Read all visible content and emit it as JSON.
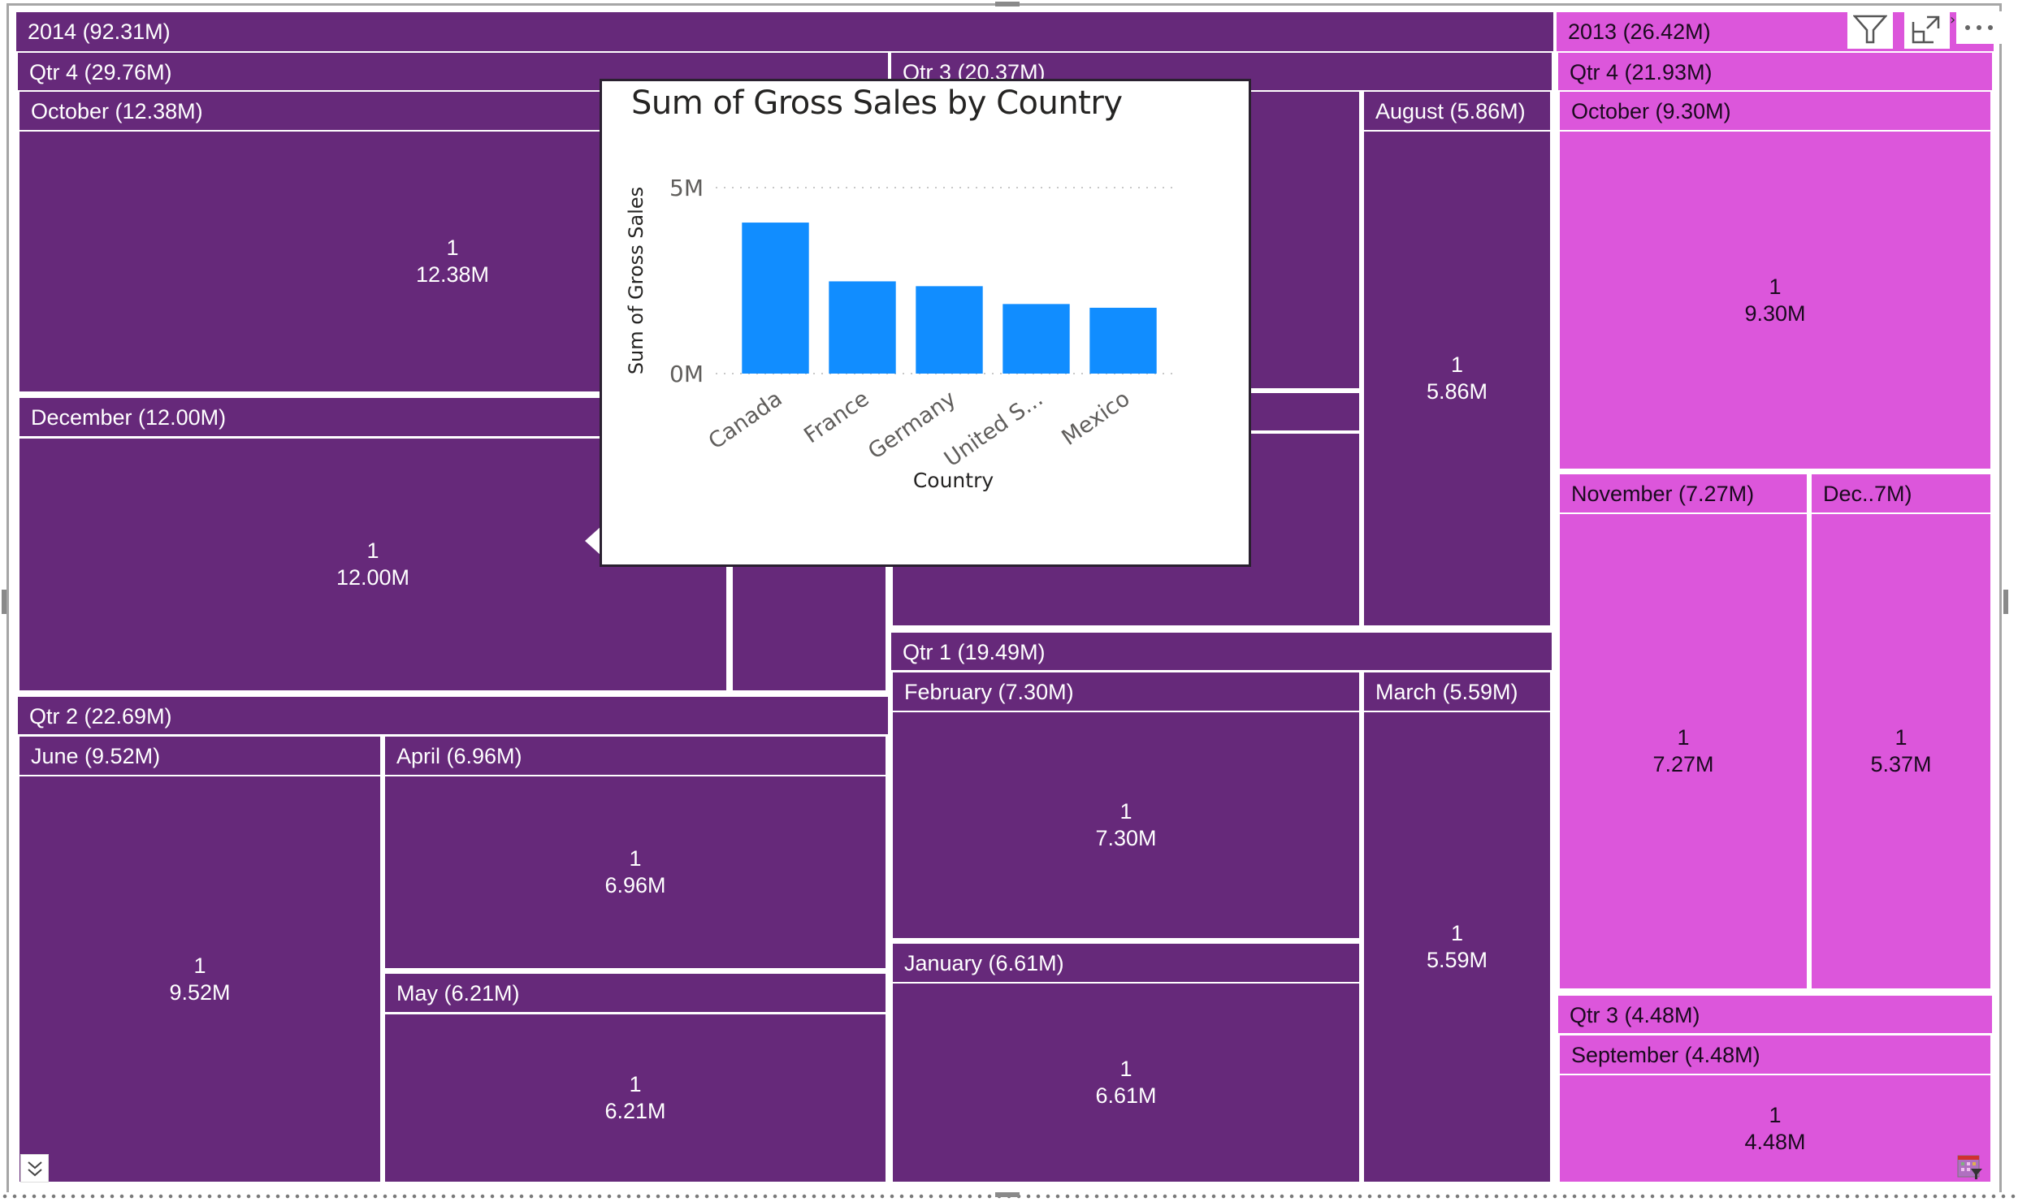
{
  "colors": {
    "year_2014": "#66297a",
    "year_2013": "#dc56db",
    "bar": "#118dff"
  },
  "treemap": {
    "y2014": {
      "label": "2014 (92.31M)",
      "q4": {
        "label": "Qtr 4 (29.76M)",
        "october": {
          "label": "October (12.38M)",
          "count": "1",
          "value": "12.38M"
        },
        "december": {
          "label": "December (12.00M)",
          "count": "1",
          "value": "12.00M"
        }
      },
      "q3": {
        "label": "Qtr 3 (20.37M)",
        "august": {
          "label": "August (5.86M)",
          "count": "1",
          "value": "5.86M"
        }
      },
      "q2": {
        "label": "Qtr 2 (22.69M)",
        "june": {
          "label": "June (9.52M)",
          "count": "1",
          "value": "9.52M"
        },
        "april": {
          "label": "April (6.96M)",
          "count": "1",
          "value": "6.96M"
        },
        "may": {
          "label": "May (6.21M)",
          "count": "1",
          "value": "6.21M"
        }
      },
      "q1": {
        "label": "Qtr 1 (19.49M)",
        "february": {
          "label": "February (7.30M)",
          "count": "1",
          "value": "7.30M"
        },
        "march": {
          "label": "March (5.59M)",
          "count": "1",
          "value": "5.59M"
        },
        "january": {
          "label": "January (6.61M)",
          "count": "1",
          "value": "6.61M"
        }
      }
    },
    "y2013": {
      "label": "2013 (26.42M)",
      "q4": {
        "label": "Qtr 4 (21.93M)",
        "october": {
          "label": "October (9.30M)",
          "count": "1",
          "value": "9.30M"
        },
        "november": {
          "label": "November (7.27M)",
          "count": "1",
          "value": "7.27M"
        },
        "december": {
          "label": "Dec..7M)",
          "count": "1",
          "value": "5.37M"
        }
      },
      "q3": {
        "label": "Qtr 3 (4.48M)",
        "september": {
          "label": "September (4.48M)",
          "count": "1",
          "value": "4.48M"
        }
      }
    }
  },
  "chart_data": {
    "type": "bar",
    "title": "Sum of Gross Sales by Country",
    "xlabel": "Country",
    "ylabel": "Sum of Gross Sales",
    "categories": [
      "Canada",
      "France",
      "Germany",
      "United S...",
      "Mexico"
    ],
    "values": [
      4.06,
      2.48,
      2.35,
      1.87,
      1.77
    ],
    "value_unit": "M",
    "ylim": [
      0,
      5
    ],
    "yticks": [
      {
        "value": 0,
        "label": "0M"
      },
      {
        "value": 5,
        "label": "5M"
      }
    ],
    "grid": true,
    "legend": "none"
  },
  "visual_header": {
    "filter_icon": "filter-icon",
    "focus_icon": "focus-mode-icon",
    "more_icon": "more-options-icon"
  }
}
